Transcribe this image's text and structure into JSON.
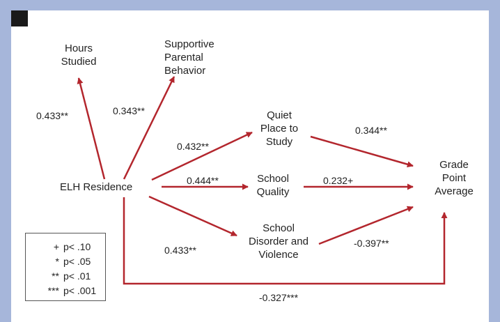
{
  "diagram": {
    "nodes": {
      "hours_studied": "Hours\nStudied",
      "supportive_parental": "Supportive\nParental\nBehavior",
      "elh_residence": "ELH Residence",
      "quiet_place": "Quiet\nPlace to\nStudy",
      "school_quality": "School\nQuality",
      "school_disorder": "School\nDisorder and\nViolence",
      "gpa": "Grade\nPoint\nAverage"
    },
    "coefficients": {
      "elh_to_hours": "0.433**",
      "elh_to_parental": "0.343**",
      "elh_to_quiet": "0.432**",
      "elh_to_quality": "0.444**",
      "elh_to_disorder": "0.433**",
      "quiet_to_gpa": "0.344**",
      "quality_to_gpa": "0.232+",
      "disorder_to_gpa": "-0.397**",
      "elh_to_gpa": "-0.327***"
    },
    "arrow_color": "#b3262d"
  },
  "legend": {
    "items": [
      {
        "symbol": "+",
        "text": "p< .10"
      },
      {
        "symbol": "*",
        "text": "p< .05"
      },
      {
        "symbol": "**",
        "text": "p< .01"
      },
      {
        "symbol": "***",
        "text": "p< .001"
      }
    ]
  }
}
